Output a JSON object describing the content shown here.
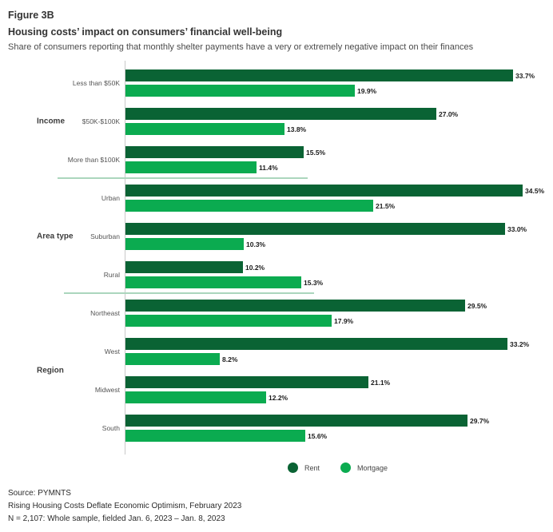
{
  "header": {
    "figure_label": "Figure 3B",
    "title": "Housing costs’ impact on consumers’ financial well-being",
    "subtitle": "Share of consumers reporting that monthly shelter payments have a very or extremely negative impact on their finances"
  },
  "chart_data": {
    "type": "bar",
    "orientation": "horizontal",
    "unit": "percent",
    "x_range": [
      0,
      36
    ],
    "grid": false,
    "legend_position": "bottom",
    "series_names": [
      "Rent",
      "Mortgage"
    ],
    "colors": {
      "rent": "#0a6334",
      "mortgage": "#0bab50"
    },
    "groups": [
      {
        "label": "Income",
        "rows": [
          {
            "category": "Less than $50K",
            "rent": 33.7,
            "mortgage": 19.9
          },
          {
            "category": "$50K-$100K",
            "rent": 27.0,
            "mortgage": 13.8
          },
          {
            "category": "More than $100K",
            "rent": 15.5,
            "mortgage": 11.4
          }
        ]
      },
      {
        "label": "Area type",
        "rows": [
          {
            "category": "Urban",
            "rent": 34.5,
            "mortgage": 21.5
          },
          {
            "category": "Suburban",
            "rent": 33.0,
            "mortgage": 10.3
          },
          {
            "category": "Rural",
            "rent": 10.2,
            "mortgage": 15.3
          }
        ]
      },
      {
        "label": "Region",
        "rows": [
          {
            "category": "Northeast",
            "rent": 29.5,
            "mortgage": 17.9
          },
          {
            "category": "West",
            "rent": 33.2,
            "mortgage": 8.2
          },
          {
            "category": "Midwest",
            "rent": 21.1,
            "mortgage": 12.2
          },
          {
            "category": "South",
            "rent": 29.7,
            "mortgage": 15.6
          }
        ]
      }
    ]
  },
  "legend": {
    "items": [
      {
        "label": "Rent",
        "color": "#0a6334"
      },
      {
        "label": "Mortgage",
        "color": "#0bab50"
      }
    ]
  },
  "footer": {
    "source": "Source: PYMNTS",
    "report": "Rising Housing Costs Deflate Economic Optimism, February 2023",
    "sample": "N = 2,107: Whole sample, fielded Jan. 6, 2023 – Jan. 8, 2023"
  }
}
